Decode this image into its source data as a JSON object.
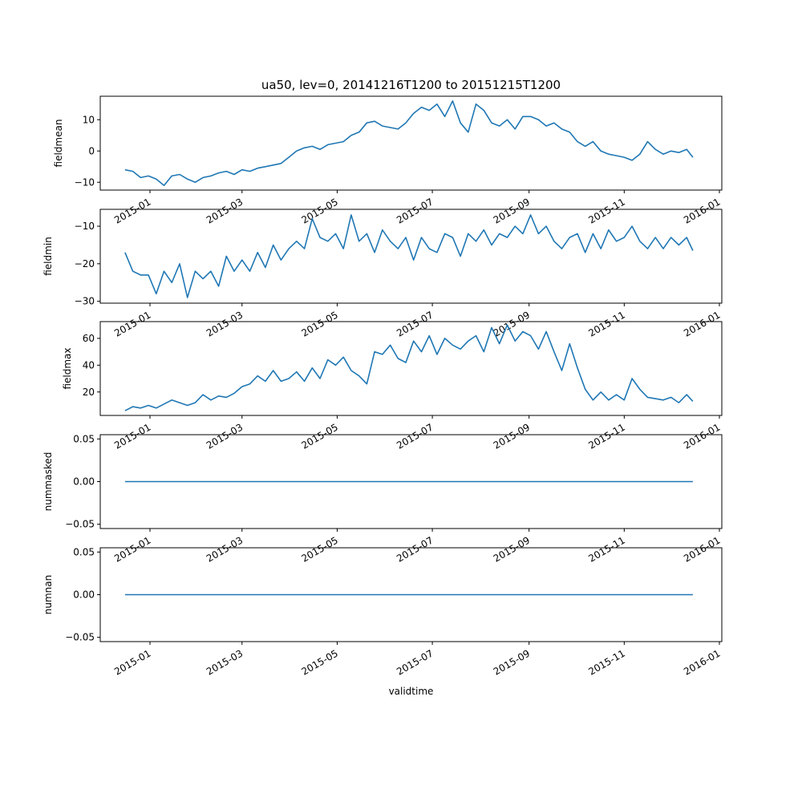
{
  "title": "ua50, lev=0, 20141216T1200 to 20151215T1200",
  "xlabel": "validtime",
  "colors": {
    "line": "#1f77b4",
    "axes": "#000000",
    "background": "#ffffff"
  },
  "chart_data": {
    "type": "line",
    "title": "ua50, lev=0, 20141216T1200 to 20151215T1200",
    "xlabel": "validtime",
    "grid": false,
    "legend": "none",
    "x_range": [
      "2014-12-16",
      "2015-12-15"
    ],
    "x_ticks": [
      "2015-01",
      "2015-03",
      "2015-05",
      "2015-07",
      "2015-09",
      "2015-11",
      "2016-01"
    ],
    "panels": [
      {
        "ylabel": "fieldmean",
        "ylim": [
          -12.5,
          17.5
        ],
        "yticks": [
          "−10",
          "0",
          "10"
        ],
        "series": [
          {
            "x": [
              "2014-12-16",
              "2014-12-21",
              "2014-12-26",
              "2014-12-31",
              "2015-01-05",
              "2015-01-10",
              "2015-01-15",
              "2015-01-20",
              "2015-01-25",
              "2015-01-30",
              "2015-02-04",
              "2015-02-09",
              "2015-02-14",
              "2015-02-19",
              "2015-02-24",
              "2015-03-01",
              "2015-03-06",
              "2015-03-11",
              "2015-03-16",
              "2015-03-21",
              "2015-03-26",
              "2015-03-31",
              "2015-04-05",
              "2015-04-10",
              "2015-04-15",
              "2015-04-20",
              "2015-04-25",
              "2015-04-30",
              "2015-05-05",
              "2015-05-10",
              "2015-05-15",
              "2015-05-20",
              "2015-05-25",
              "2015-05-30",
              "2015-06-04",
              "2015-06-09",
              "2015-06-14",
              "2015-06-19",
              "2015-06-24",
              "2015-06-29",
              "2015-07-04",
              "2015-07-09",
              "2015-07-14",
              "2015-07-19",
              "2015-07-24",
              "2015-07-29",
              "2015-08-03",
              "2015-08-08",
              "2015-08-13",
              "2015-08-18",
              "2015-08-23",
              "2015-08-28",
              "2015-09-02",
              "2015-09-07",
              "2015-09-12",
              "2015-09-17",
              "2015-09-22",
              "2015-09-27",
              "2015-10-02",
              "2015-10-07",
              "2015-10-12",
              "2015-10-17",
              "2015-10-22",
              "2015-10-27",
              "2015-11-01",
              "2015-11-06",
              "2015-11-11",
              "2015-11-16",
              "2015-11-21",
              "2015-11-26",
              "2015-12-01",
              "2015-12-06",
              "2015-12-11",
              "2015-12-15"
            ],
            "values": [
              -6,
              -6.5,
              -8.5,
              -8,
              -9,
              -11,
              -8,
              -7.5,
              -9,
              -10,
              -8.5,
              -8,
              -7,
              -6.5,
              -7.5,
              -6,
              -6.5,
              -5.5,
              -5,
              -4.5,
              -4,
              -2,
              0,
              1,
              1.5,
              0.5,
              2,
              2.5,
              3,
              5,
              6,
              9,
              9.5,
              8,
              7.5,
              7,
              9,
              12,
              14,
              13,
              15,
              11,
              16,
              9,
              6,
              15,
              13,
              9,
              8,
              10,
              7,
              11,
              11,
              10,
              8,
              9,
              7,
              6,
              3,
              1.5,
              3,
              0,
              -1,
              -1.5,
              -2,
              -3,
              -1,
              3,
              0.5,
              -1,
              0,
              -0.5,
              0.5,
              -2
            ]
          }
        ]
      },
      {
        "ylabel": "fieldmin",
        "ylim": [
          -30.5,
          -5.5
        ],
        "yticks": [
          "−30",
          "−20",
          "−10"
        ],
        "series": [
          {
            "x": [
              "2014-12-16",
              "2014-12-21",
              "2014-12-26",
              "2014-12-31",
              "2015-01-05",
              "2015-01-10",
              "2015-01-15",
              "2015-01-20",
              "2015-01-25",
              "2015-01-30",
              "2015-02-04",
              "2015-02-09",
              "2015-02-14",
              "2015-02-19",
              "2015-02-24",
              "2015-03-01",
              "2015-03-06",
              "2015-03-11",
              "2015-03-16",
              "2015-03-21",
              "2015-03-26",
              "2015-03-31",
              "2015-04-05",
              "2015-04-10",
              "2015-04-15",
              "2015-04-20",
              "2015-04-25",
              "2015-04-30",
              "2015-05-05",
              "2015-05-10",
              "2015-05-15",
              "2015-05-20",
              "2015-05-25",
              "2015-05-30",
              "2015-06-04",
              "2015-06-09",
              "2015-06-14",
              "2015-06-19",
              "2015-06-24",
              "2015-06-29",
              "2015-07-04",
              "2015-07-09",
              "2015-07-14",
              "2015-07-19",
              "2015-07-24",
              "2015-07-29",
              "2015-08-03",
              "2015-08-08",
              "2015-08-13",
              "2015-08-18",
              "2015-08-23",
              "2015-08-28",
              "2015-09-02",
              "2015-09-07",
              "2015-09-12",
              "2015-09-17",
              "2015-09-22",
              "2015-09-27",
              "2015-10-02",
              "2015-10-07",
              "2015-10-12",
              "2015-10-17",
              "2015-10-22",
              "2015-10-27",
              "2015-11-01",
              "2015-11-06",
              "2015-11-11",
              "2015-11-16",
              "2015-11-21",
              "2015-11-26",
              "2015-12-01",
              "2015-12-06",
              "2015-12-11",
              "2015-12-15"
            ],
            "values": [
              -17,
              -22,
              -23,
              -23,
              -28,
              -22,
              -25,
              -20,
              -29,
              -22,
              -24,
              -22,
              -26,
              -18,
              -22,
              -19,
              -22,
              -17,
              -21,
              -15,
              -19,
              -16,
              -14,
              -16,
              -8,
              -13,
              -14,
              -12,
              -16,
              -7,
              -14,
              -12,
              -17,
              -11,
              -14,
              -16,
              -13,
              -19,
              -13,
              -16,
              -17,
              -12,
              -13,
              -18,
              -12,
              -14,
              -11,
              -15,
              -12,
              -13,
              -10,
              -12,
              -7,
              -12,
              -10,
              -14,
              -16,
              -13,
              -12,
              -17,
              -12,
              -16,
              -11,
              -14,
              -13,
              -10,
              -14,
              -16,
              -13,
              -16,
              -13,
              -15,
              -13,
              -16.5
            ]
          }
        ]
      },
      {
        "ylabel": "fieldmax",
        "ylim": [
          2.5,
          72.5
        ],
        "yticks": [
          "20",
          "40",
          "60"
        ],
        "series": [
          {
            "x": [
              "2014-12-16",
              "2014-12-21",
              "2014-12-26",
              "2014-12-31",
              "2015-01-05",
              "2015-01-10",
              "2015-01-15",
              "2015-01-20",
              "2015-01-25",
              "2015-01-30",
              "2015-02-04",
              "2015-02-09",
              "2015-02-14",
              "2015-02-19",
              "2015-02-24",
              "2015-03-01",
              "2015-03-06",
              "2015-03-11",
              "2015-03-16",
              "2015-03-21",
              "2015-03-26",
              "2015-03-31",
              "2015-04-05",
              "2015-04-10",
              "2015-04-15",
              "2015-04-20",
              "2015-04-25",
              "2015-04-30",
              "2015-05-05",
              "2015-05-10",
              "2015-05-15",
              "2015-05-20",
              "2015-05-25",
              "2015-05-30",
              "2015-06-04",
              "2015-06-09",
              "2015-06-14",
              "2015-06-19",
              "2015-06-24",
              "2015-06-29",
              "2015-07-04",
              "2015-07-09",
              "2015-07-14",
              "2015-07-19",
              "2015-07-24",
              "2015-07-29",
              "2015-08-03",
              "2015-08-08",
              "2015-08-13",
              "2015-08-18",
              "2015-08-23",
              "2015-08-28",
              "2015-09-02",
              "2015-09-07",
              "2015-09-12",
              "2015-09-17",
              "2015-09-22",
              "2015-09-27",
              "2015-10-02",
              "2015-10-07",
              "2015-10-12",
              "2015-10-17",
              "2015-10-22",
              "2015-10-27",
              "2015-11-01",
              "2015-11-06",
              "2015-11-11",
              "2015-11-16",
              "2015-11-21",
              "2015-11-26",
              "2015-12-01",
              "2015-12-06",
              "2015-12-11",
              "2015-12-15"
            ],
            "values": [
              6,
              9,
              8,
              10,
              8,
              11,
              14,
              12,
              10,
              12,
              18,
              14,
              17,
              16,
              19,
              24,
              26,
              32,
              28,
              36,
              28,
              30,
              35,
              28,
              38,
              30,
              44,
              40,
              46,
              36,
              32,
              26,
              50,
              48,
              55,
              45,
              42,
              58,
              50,
              62,
              48,
              60,
              55,
              52,
              58,
              62,
              50,
              68,
              56,
              70,
              58,
              65,
              62,
              52,
              65,
              50,
              36,
              56,
              38,
              22,
              14,
              20,
              14,
              18,
              14,
              30,
              22,
              16,
              15,
              14,
              16,
              12,
              18,
              13
            ]
          }
        ]
      },
      {
        "ylabel": "nummasked",
        "ylim": [
          -0.055,
          0.055
        ],
        "yticks": [
          "−0.05",
          "0.00",
          "0.05"
        ],
        "series": [
          {
            "x": [
              "2014-12-16",
              "2015-12-15"
            ],
            "values": [
              0,
              0
            ]
          }
        ]
      },
      {
        "ylabel": "numnan",
        "ylim": [
          -0.055,
          0.055
        ],
        "yticks": [
          "−0.05",
          "0.00",
          "0.05"
        ],
        "series": [
          {
            "x": [
              "2014-12-16",
              "2015-12-15"
            ],
            "values": [
              0,
              0
            ]
          }
        ]
      }
    ]
  }
}
